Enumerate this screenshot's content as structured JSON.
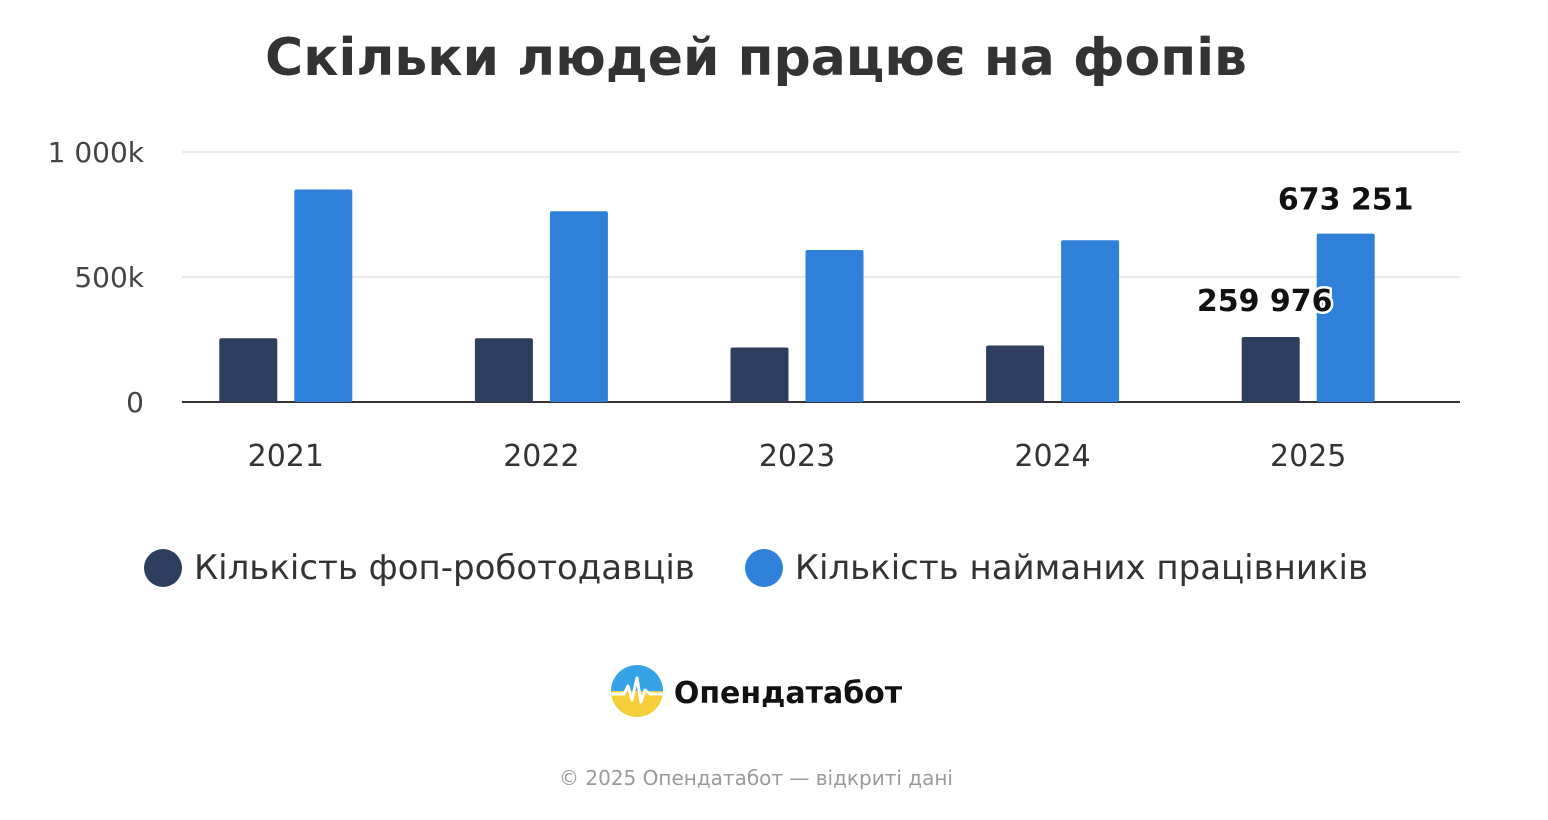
{
  "chart_data": {
    "type": "bar",
    "title": "Скільки людей працює на фопів",
    "categories": [
      "2021",
      "2022",
      "2023",
      "2024",
      "2025"
    ],
    "series": [
      {
        "name": "Кількість фоп-роботодавців",
        "color": "#2d3e5e",
        "values": [
          255000,
          255000,
          218000,
          226000,
          259976
        ]
      },
      {
        "name": "Кількість найманих працівників",
        "color": "#2e80d8",
        "values": [
          850000,
          763000,
          608000,
          647000,
          673251
        ]
      }
    ],
    "ylim": [
      0,
      1000000
    ],
    "yticks": [
      {
        "value": 0,
        "label": "0"
      },
      {
        "value": 500000,
        "label": "500k"
      },
      {
        "value": 1000000,
        "label": "1 000k"
      }
    ],
    "data_labels": [
      {
        "series": 0,
        "index": 4,
        "text": "259 976"
      },
      {
        "series": 1,
        "index": 4,
        "text": "673 251"
      }
    ],
    "grid": true,
    "legend_position": "bottom"
  },
  "brand": {
    "name": "Опендатабот",
    "logo_icon": "opendatabot-logo-icon"
  },
  "footer": {
    "text": "© 2025 Опендатабот — відкриті дані"
  }
}
